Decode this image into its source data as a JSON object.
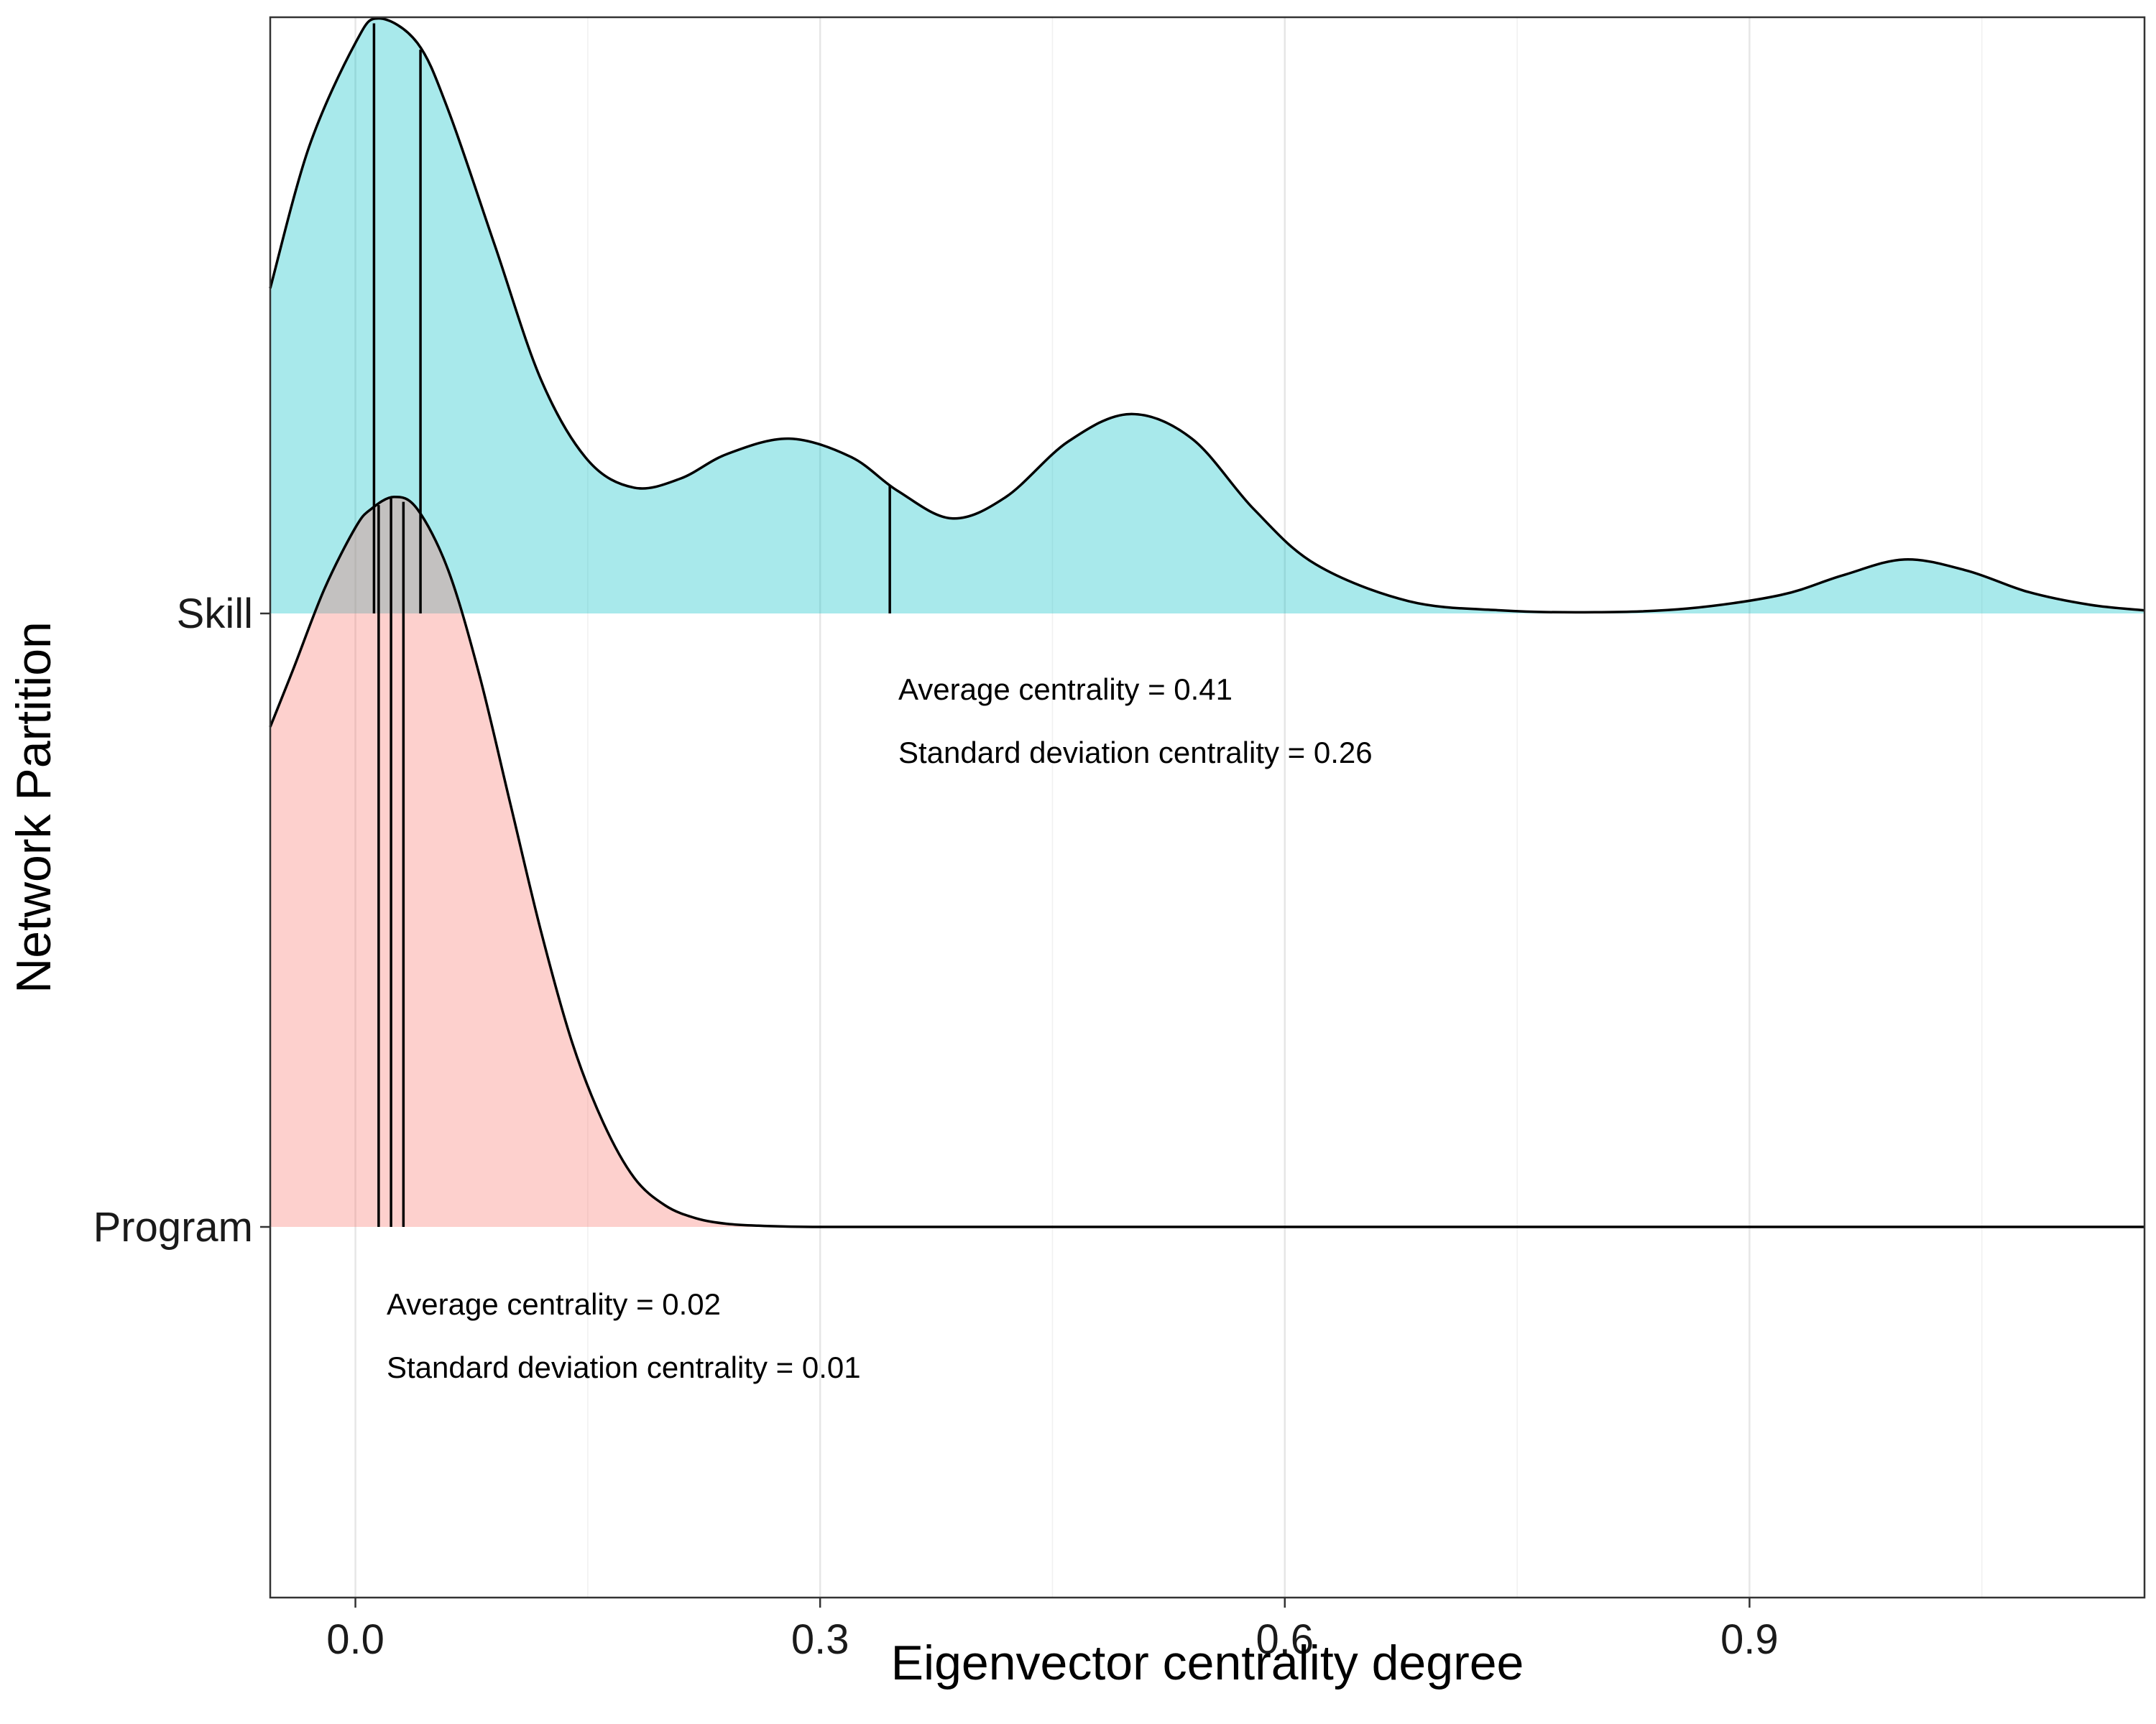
{
  "chart_data": {
    "type": "area",
    "xlabel": "Eigenvector centrality degree",
    "ylabel": "Network Partition",
    "xlim": [
      -0.055,
      1.155
    ],
    "x_ticks": [
      0.0,
      0.3,
      0.6,
      0.9
    ],
    "x_tick_labels": [
      "0.0",
      "0.3",
      "0.6",
      "0.9"
    ],
    "y_categories": [
      "Skill",
      "Program"
    ],
    "grid": true,
    "series": [
      {
        "name": "Skill",
        "fill": "#00BFC4",
        "x": [
          -0.055,
          -0.03,
          0.0,
          0.015,
          0.04,
          0.06,
          0.09,
          0.12,
          0.15,
          0.18,
          0.21,
          0.24,
          0.28,
          0.32,
          0.35,
          0.385,
          0.42,
          0.46,
          0.5,
          0.54,
          0.58,
          0.62,
          0.68,
          0.74,
          0.8,
          0.86,
          0.92,
          0.96,
          1.0,
          1.04,
          1.08,
          1.12,
          1.155
        ],
        "y": [
          0.53,
          0.76,
          0.93,
          0.97,
          0.93,
          0.82,
          0.6,
          0.38,
          0.25,
          0.205,
          0.22,
          0.26,
          0.285,
          0.255,
          0.2,
          0.155,
          0.19,
          0.28,
          0.325,
          0.285,
          0.17,
          0.08,
          0.02,
          0.005,
          0.002,
          0.008,
          0.03,
          0.062,
          0.088,
          0.07,
          0.035,
          0.014,
          0.005
        ],
        "quantile_lines": [
          0.012,
          0.042,
          0.345
        ]
      },
      {
        "name": "Program",
        "fill": "#F8766D",
        "x": [
          -0.055,
          -0.04,
          -0.02,
          0.0,
          0.01,
          0.025,
          0.04,
          0.06,
          0.08,
          0.1,
          0.12,
          0.14,
          0.16,
          0.18,
          0.2,
          0.22,
          0.24,
          0.26,
          0.3,
          0.4,
          0.6,
          0.8,
          1.0,
          1.155
        ],
        "y": [
          0.815,
          0.91,
          1.04,
          1.14,
          1.17,
          1.19,
          1.17,
          1.07,
          0.9,
          0.69,
          0.48,
          0.3,
          0.17,
          0.08,
          0.035,
          0.014,
          0.005,
          0.002,
          0.0,
          0.0,
          0.0,
          0.0,
          0.0,
          0.0
        ],
        "quantile_lines": [
          0.015,
          0.023,
          0.031
        ]
      }
    ],
    "annotations": [
      {
        "text": "Average centrality = 0.41",
        "series": "Skill"
      },
      {
        "text": "Standard deviation centrality = 0.26",
        "series": "Skill"
      },
      {
        "text": "Average centrality = 0.02",
        "series": "Program"
      },
      {
        "text": "Standard deviation centrality = 0.01",
        "series": "Program"
      }
    ]
  }
}
